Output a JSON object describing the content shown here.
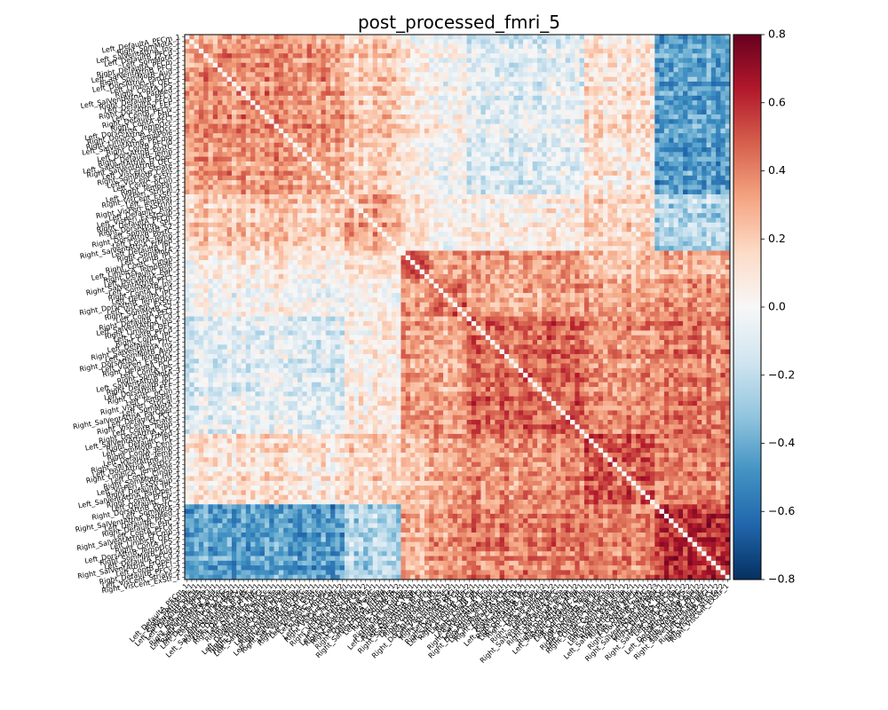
{
  "chart_data": {
    "type": "heatmap",
    "title": "post_processed_fmri_5",
    "xlabel": "",
    "ylabel": "",
    "colormap": "RdBu_r",
    "vmin": -0.8,
    "vmax": 0.8,
    "colorbar_ticks": [
      0.8,
      0.6,
      0.4,
      0.2,
      0.0,
      -0.2,
      -0.4,
      -0.6,
      -0.8
    ],
    "colorbar_tick_labels": [
      "0.8",
      "0.6",
      "0.4",
      "0.2",
      "0.0",
      "−0.2",
      "−0.4",
      "−0.6",
      "−0.8"
    ],
    "matrix_size": 116,
    "diagonal_value": 0.0,
    "legend": "none",
    "grid": false,
    "colors": {
      "vmin_color": "#053061",
      "mid_color": "#f7f7f7",
      "vmax_color": "#67001f"
    },
    "blocks": [
      {
        "start": 0,
        "end": 34
      },
      {
        "start": 34,
        "end": 46
      },
      {
        "start": 46,
        "end": 52
      },
      {
        "start": 52,
        "end": 60
      },
      {
        "start": 60,
        "end": 85
      },
      {
        "start": 85,
        "end": 100
      },
      {
        "start": 100,
        "end": 116
      }
    ],
    "block_values": [
      [
        0.35,
        0.2,
        0.05,
        0.0,
        -0.1,
        0.1,
        -0.45
      ],
      [
        0.2,
        0.3,
        0.1,
        0.0,
        0.05,
        0.15,
        -0.25
      ],
      [
        0.05,
        0.1,
        0.5,
        0.3,
        0.3,
        0.2,
        0.25
      ],
      [
        0.0,
        0.0,
        0.3,
        0.45,
        0.3,
        0.3,
        0.35
      ],
      [
        -0.1,
        0.05,
        0.3,
        0.3,
        0.45,
        0.35,
        0.4
      ],
      [
        0.1,
        0.15,
        0.2,
        0.3,
        0.35,
        0.5,
        0.4
      ],
      [
        -0.45,
        -0.25,
        0.25,
        0.35,
        0.4,
        0.4,
        0.6
      ]
    ],
    "y_tick_labels": [
      "Left_DefaultA_PFCm_1",
      "Right_SomMotA_1",
      "Left_SalVentAttnA_Ins_1",
      "Left_DefaultB_PFCd_1",
      "Left_SomMotA_1",
      "Right_DefaultA_PFCm_1",
      "Left_SalVentAttnB_PFCl_1",
      "Right_SomMotB_Aud_1",
      "Left_DorsAttnA_ParOcc_1",
      "Left_LimbicB_OFC_1",
      "Right_ContA_IPS_1",
      "Left_SalVentAttnA_ParMed_1",
      "Right_DefaultB_PFCv_1",
      "Left_DefaultA_PFCd_1",
      "Right_DorsAttnB_FEF_1",
      "Left_ContB_PFClv_1",
      "Right_DefaultC_PHC_1",
      "Right_ContA_PFCl_1",
      "Left_DorsAttnA_TempOcc_1",
      "Right_DorsAttnA_ParOcc_1",
      "Right_LimbicA_TempPole_1",
      "Left_SalVentAttnB_PFCmp_1",
      "Right_ContB_PFCld_1",
      "Left_DorsAttnB_PostC_1",
      "Right_DefaultB_Temp_1",
      "Left_SalVentAttnA_FrOper_1",
      "Right_SalVentAttnB_OFC_1",
      "Left_VisCent_Striate_1",
      "Right_SomMotB_Cent_1",
      "Left_VisCent_ExStr_1",
      "Left_ContC_pCun_1",
      "Right_TempPar_1",
      "Left_VisPeri_StriCal_1",
      "Right_VisCent_ExStr_2",
      "Left_TempPar_1",
      "Right_VisPeri_ExStrInf_1",
      "Left_DefaultC_Rsp_1",
      "Left_VisPeri_ExStrSup_1",
      "Right_DefaultA_PFCm_2",
      "Right_DorsAttnA_SPL_1",
      "Left_SomMotB_S2_1",
      "Right_DorsAttnB_PostC_1",
      "Left_ContA_Temp_1",
      "Right_SalVentAttnA_FrMed_1",
      "Left_DefaultB_IPL_1",
      "Right_SomMotA_2",
      "Left_ContB_IPL_1",
      "Right_ContC_Cingp_1",
      "Left_LimbicA_TempPole_1",
      "Right_DefaultC_Rsp_1",
      "Left_DorsAttnA_SPL_1",
      "Right_SalVentAttnB_PFCl_1",
      "Left_SomMotB_Ins_1",
      "Right_ContA_PFCd_1",
      "Left_DefaultA_IPL_1",
      "Right_DorsAttnB_TempOcc_1",
      "Left_VisCent_ExStr_2",
      "Right_SomMotB_S2_1",
      "Left_ContA_PFCl_1",
      "Right_DefaultB_PFCd_1",
      "Left_SalVentAttnA_Ins_2",
      "Right_LimbicB_OFC_1",
      "Left_ContB_PFCd_1",
      "Right_ContB_IPL_1",
      "Left_DefaultC_PHC_1",
      "Right_SalVentAttnA_Ins_1",
      "Left_SomMotB_Aud_1",
      "Right_DorsAttnA_TempOcc_1",
      "Left_VisPeri_ExStrInf_1",
      "Right_DefaultA_PCC_1",
      "Left_ContA_IPS_1",
      "Right_SomMotA_3",
      "Left_SalVentAttnB_IPL_1",
      "Right_DefaultB_IPL_1",
      "Left_DorsAttnB_FEF_1",
      "Right_ContC_pCun_1",
      "Left_TempPar_2",
      "Right_VisPeri_StriCal_1",
      "Left_SomMotA_2",
      "Right_SalVentAttnA_ParOper_1",
      "Left_DefaultA_PCC_1",
      "Right_VisCent_Striate_1",
      "Left_ContB_Temp_1",
      "Right_DorsAttnA_SPL_2",
      "Left_SalVentAttnA_FrMed_1",
      "Right_DefaultC_IPL_1",
      "Left_SomMotB_Cent_1",
      "Right_ContA_Temp_1",
      "Left_DefaultB_Temp_1",
      "Right_SalVentAttnB_Ins_1",
      "Left_DorsAttnA_ParOcc_2",
      "Right_LimbicA_TempPole_2",
      "Left_ContC_Cingp_1",
      "Right_SomMotB_Ins_1",
      "Left_VisPeri_ExStrSup_2",
      "Right_DefaultA_IPL_1",
      "Left_SalVentAttnA_ParOper_1",
      "Right_ContB_PFClv_1",
      "Left_DefaultC_IPL_1",
      "Right_DorsAttnB_PostC_2",
      "Left_SomMotA_3",
      "Right_SalVentAttnA_ParMed_1",
      "Left_DefaultB_PFCv_1",
      "Right_DefaultC_PHC_2",
      "Left_ContA_PFCd_1",
      "Right_SalVentAttnB_PFCmp_1",
      "Left_LimbicB_OFC_2",
      "Right_ContA_IPS_2",
      "Left_DorsAttnB_TempOcc_1",
      "Right_SomMotB_Aud_2",
      "Left_DefaultA_PFCd_2",
      "Right_SalVentAttnA_FrOper_1",
      "Left_ContB_PFCl_1",
      "Right_DefaultB_PFCv_2",
      "Left_VisCent_Striate_2",
      "Right_VisCent_ExStr_1"
    ],
    "x_tick_labels": [
      "Left_DefaultA_PFCm_1",
      "Right_SomMotA_1",
      "Left_SalVentAttnA_Ins_1",
      "Left_DefaultB_PFCd_1",
      "Left_SomMotA_1",
      "Right_DefaultA_PFCm_1",
      "Left_SalVentAttnB_PFCl_1",
      "Right_SomMotB_Aud_1",
      "Left_DorsAttnA_ParOcc_1",
      "Left_LimbicB_OFC_1",
      "Right_ContA_IPS_1",
      "Left_SalVentAttnA_ParMed_1",
      "Right_DefaultB_PFCv_1",
      "Left_DefaultA_PFCd_1",
      "Right_DorsAttnB_FEF_1",
      "Left_ContB_PFClv_1",
      "Right_DefaultC_PHC_1",
      "Right_ContA_PFCl_1",
      "Left_DorsAttnA_TempOcc_1",
      "Right_DorsAttnA_ParOcc_1",
      "Right_LimbicA_TempPole_1",
      "Left_SalVentAttnB_PFCmp_1",
      "Right_ContB_PFCld_1",
      "Left_DorsAttnB_PostC_1",
      "Right_DefaultB_Temp_1",
      "Left_SalVentAttnA_FrOper_1",
      "Right_SalVentAttnB_OFC_1",
      "Left_VisCent_Striate_1",
      "Right_SomMotB_Cent_1",
      "Left_VisCent_ExStr_1",
      "Left_ContC_pCun_1",
      "Right_TempPar_1",
      "Left_VisPeri_StriCal_1",
      "Right_VisCent_ExStr_2",
      "Left_TempPar_1",
      "Right_VisPeri_ExStrInf_1",
      "Left_DefaultC_Rsp_1",
      "Left_VisPeri_ExStrSup_1",
      "Right_DefaultA_PFCm_2",
      "Right_DorsAttnA_SPL_1",
      "Left_SomMotB_S2_1",
      "Right_DorsAttnB_PostC_1",
      "Left_ContA_Temp_1",
      "Right_SalVentAttnA_FrMed_1",
      "Left_DefaultB_IPL_1",
      "Right_SomMotA_2",
      "Left_ContB_IPL_1",
      "Right_ContC_Cingp_1",
      "Left_LimbicA_TempPole_1",
      "Right_DefaultC_Rsp_1",
      "Left_DorsAttnA_SPL_1",
      "Right_SalVentAttnB_PFCl_1",
      "Left_SomMotB_Ins_1",
      "Right_ContA_PFCd_1",
      "Left_DefaultA_IPL_1",
      "Right_DorsAttnB_TempOcc_1",
      "Left_VisCent_ExStr_2",
      "Right_SomMotB_S2_1",
      "Left_ContA_PFCl_1",
      "Right_DefaultB_PFCd_1",
      "Left_SalVentAttnA_Ins_2",
      "Right_LimbicB_OFC_1",
      "Left_ContB_PFCd_1",
      "Right_ContB_IPL_1",
      "Left_DefaultC_PHC_1",
      "Right_SalVentAttnA_Ins_1",
      "Left_SomMotB_Aud_1",
      "Right_DorsAttnA_TempOcc_1",
      "Left_VisPeri_ExStrInf_1",
      "Right_DefaultA_PCC_1",
      "Left_ContA_IPS_1",
      "Right_SomMotA_3",
      "Left_SalVentAttnB_IPL_1",
      "Right_DefaultB_IPL_1",
      "Left_DorsAttnB_FEF_1",
      "Right_ContC_pCun_1",
      "Left_TempPar_2",
      "Right_VisPeri_StriCal_1",
      "Left_SomMotA_2",
      "Right_SalVentAttnA_ParOper_1",
      "Left_DefaultA_PCC_1",
      "Right_VisCent_Striate_1",
      "Left_ContB_Temp_1",
      "Right_DorsAttnA_SPL_2",
      "Left_SalVentAttnA_FrMed_1",
      "Right_DefaultC_IPL_1",
      "Left_SomMotB_Cent_1",
      "Right_ContA_Temp_1",
      "Left_DefaultB_Temp_1",
      "Right_SalVentAttnB_Ins_1",
      "Left_DorsAttnA_ParOcc_2",
      "Right_LimbicA_TempPole_2",
      "Left_ContC_Cingp_1",
      "Right_SomMotB_Ins_1",
      "Left_VisPeri_ExStrSup_2",
      "Right_DefaultA_IPL_1",
      "Left_SalVentAttnA_ParOper_1",
      "Right_ContB_PFClv_1",
      "Left_DefaultC_IPL_1",
      "Right_DorsAttnB_PostC_2",
      "Left_SomMotA_3",
      "Right_SalVentAttnA_ParMed_1",
      "Left_DefaultB_PFCv_1",
      "Right_DefaultC_PHC_2",
      "Left_ContA_PFCd_1",
      "Right_SalVentAttnB_PFCmp_1",
      "Left_LimbicB_OFC_2",
      "Right_ContA_IPS_2",
      "Left_DorsAttnB_TempOcc_1",
      "Right_SomMotB_Aud_2",
      "Left_DefaultA_PFCd_2",
      "Right_SalVentAttnA_FrOper_1",
      "Left_ContB_PFCl_1",
      "Right_DefaultB_PFCv_2",
      "Left_VisCent_Striate_2",
      "Right_VisCent_ExStr_1"
    ]
  }
}
